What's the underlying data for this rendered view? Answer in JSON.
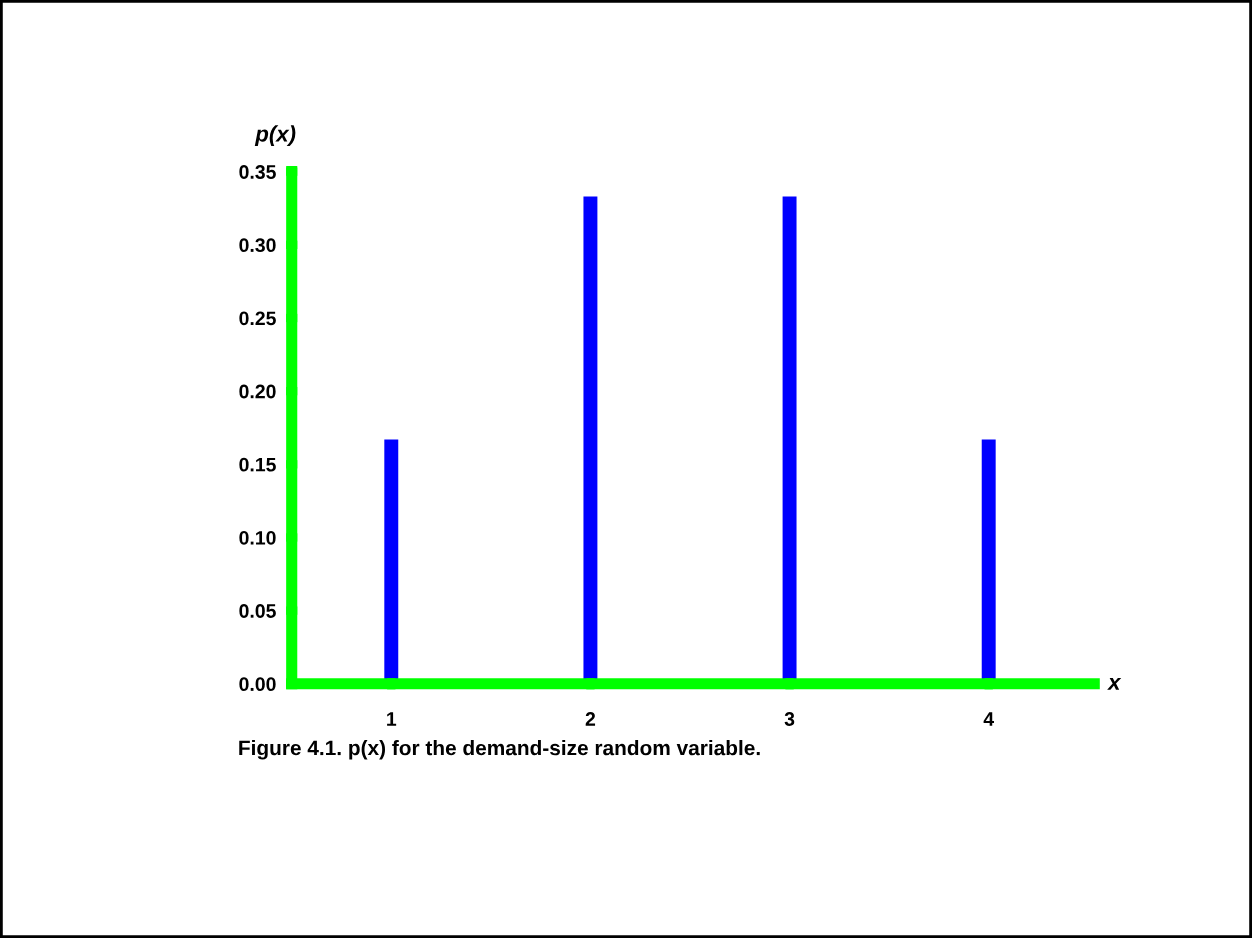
{
  "chart_data": {
    "type": "bar",
    "x": [
      1,
      2,
      3,
      4
    ],
    "values": [
      0.167,
      0.333,
      0.333,
      0.167
    ],
    "color": "#0000ff",
    "xlim": [
      0.5,
      4.53
    ],
    "xticks": [
      1,
      2,
      3,
      4
    ],
    "ylim": [
      0,
      0.35
    ],
    "yticks": [
      {
        "value": 0,
        "label": "0.00"
      },
      {
        "value": 0.05,
        "label": "0.05"
      },
      {
        "value": 0.1,
        "label": "0.10"
      },
      {
        "value": 0.15,
        "label": "0.15"
      },
      {
        "value": 0.2,
        "label": "0.20"
      },
      {
        "value": 0.25,
        "label": "0.25"
      },
      {
        "value": 0.3,
        "label": "0.30"
      },
      {
        "value": 0.35,
        "label": "0.35"
      }
    ],
    "xlabel": "x",
    "ylabel": "p(x)",
    "grid": false,
    "legend": false,
    "annotations": [
      "Figure 4.1. p(x) for the demand-size random variable."
    ]
  }
}
